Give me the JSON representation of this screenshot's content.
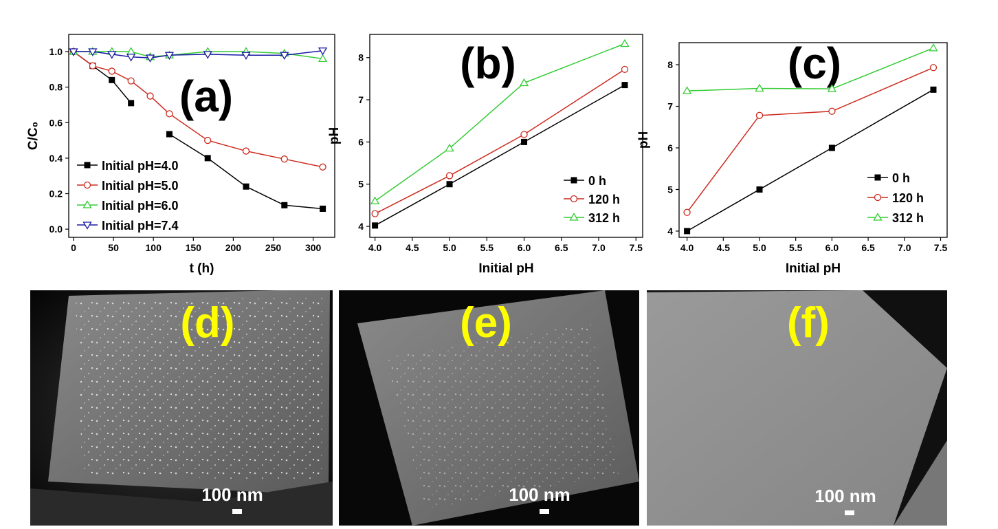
{
  "chart_data": [
    {
      "type": "line",
      "panel": "(a)",
      "xlabel": "t (h)",
      "ylabel": "C/C₀",
      "x": [
        0,
        24,
        48,
        72,
        96,
        120,
        168,
        216,
        264,
        312
      ],
      "xlim": [
        -6,
        327
      ],
      "xticks": [
        0,
        50,
        100,
        150,
        200,
        250,
        300
      ],
      "ylim": [
        -0.046,
        1.097
      ],
      "yticks": [
        {
          "value": 0,
          "label": "0.0"
        },
        0.2,
        0.4,
        0.6,
        0.8,
        {
          "value": 1,
          "label": "1.0"
        }
      ],
      "legend": "lower left",
      "series": [
        {
          "name": "Initial pH=4.0",
          "color": "#000000",
          "marker": "square",
          "values": [
            1.0,
            0.92,
            0.84,
            0.71,
            null,
            0.535,
            0.4,
            0.24,
            0.135,
            0.115
          ]
        },
        {
          "name": "Initial pH=5.0",
          "color": "#cc2a1e",
          "marker": "circle",
          "values": [
            1.0,
            0.92,
            0.89,
            0.835,
            0.75,
            0.65,
            0.5,
            0.44,
            0.395,
            0.35
          ]
        },
        {
          "name": "Initial pH=6.0",
          "color": "#33cc33",
          "marker": "triangle-up",
          "values": [
            1.0,
            1.0,
            1.0,
            1.0,
            0.97,
            0.98,
            1.0,
            1.0,
            0.99,
            0.96
          ]
        },
        {
          "name": "Initial pH=7.4",
          "color": "#1a1aa6",
          "marker": "triangle-down",
          "values": [
            1.0,
            1.0,
            0.985,
            0.97,
            0.965,
            0.98,
            0.985,
            0.98,
            0.98,
            1.005
          ]
        }
      ]
    },
    {
      "type": "line",
      "panel": "(b)",
      "xlabel": "Initial pH",
      "ylabel": "pH",
      "x": [
        4.0,
        5.0,
        6.0,
        7.35
      ],
      "xlim": [
        3.93,
        7.59
      ],
      "xticks": [
        {
          "value": 4,
          "label": "4.0"
        },
        4.5,
        {
          "value": 5,
          "label": "5.0"
        },
        5.5,
        {
          "value": 6,
          "label": "6.0"
        },
        6.5,
        {
          "value": 7,
          "label": "7.0"
        },
        7.5
      ],
      "ylim": [
        3.74,
        8.55
      ],
      "yticks": [
        4,
        5,
        6,
        7,
        8
      ],
      "legend": "lower right",
      "series": [
        {
          "name": "0 h",
          "color": "#000000",
          "marker": "square",
          "values": [
            4.02,
            5.0,
            6.0,
            7.35
          ]
        },
        {
          "name": "120 h",
          "color": "#cc2a1e",
          "marker": "circle",
          "values": [
            4.3,
            5.2,
            6.18,
            7.72
          ]
        },
        {
          "name": "312 h",
          "color": "#33cc33",
          "marker": "triangle-up",
          "values": [
            4.6,
            5.85,
            7.4,
            8.33
          ]
        }
      ]
    },
    {
      "type": "line",
      "panel": "(c)",
      "xlabel": "Initial pH",
      "ylabel": "pH",
      "x": [
        4.0,
        5.0,
        6.0,
        7.4
      ],
      "xlim": [
        3.89,
        7.59
      ],
      "xticks": [
        {
          "value": 4,
          "label": "4.0"
        },
        4.5,
        {
          "value": 5,
          "label": "5.0"
        },
        5.5,
        {
          "value": 6,
          "label": "6.0"
        },
        6.5,
        {
          "value": 7,
          "label": "7.0"
        },
        7.5
      ],
      "ylim": [
        3.85,
        8.53
      ],
      "yticks": [
        4,
        5,
        6,
        7,
        8
      ],
      "legend": "lower right",
      "series": [
        {
          "name": "0 h",
          "color": "#000000",
          "marker": "square",
          "values": [
            4.0,
            5.0,
            6.0,
            7.4
          ]
        },
        {
          "name": "120 h",
          "color": "#cc2a1e",
          "marker": "circle",
          "values": [
            4.45,
            6.78,
            6.88,
            7.93
          ]
        },
        {
          "name": "312 h",
          "color": "#33cc33",
          "marker": "triangle-up",
          "values": [
            7.37,
            7.43,
            7.42,
            8.4
          ]
        }
      ]
    }
  ],
  "images": [
    {
      "label": "(d)",
      "scale": "100 nm"
    },
    {
      "label": "(e)",
      "scale": "100 nm"
    },
    {
      "label": "(f)",
      "scale": "100 nm"
    }
  ]
}
